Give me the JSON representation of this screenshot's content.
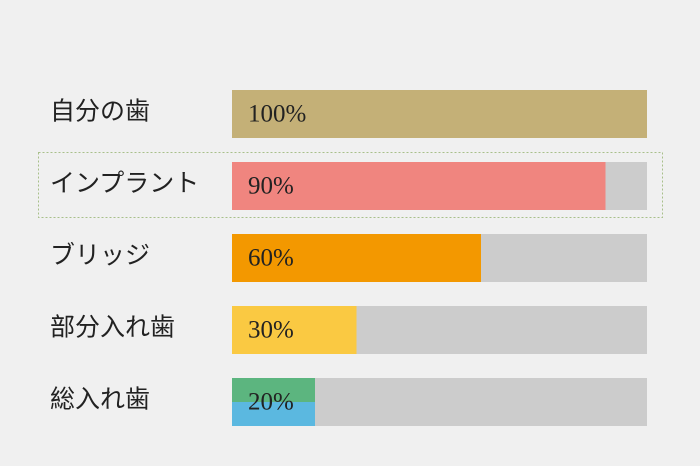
{
  "chart_data": {
    "type": "barh",
    "categories": [
      "自分の歯",
      "インプラント",
      "ブリッジ",
      "部分入れ歯",
      "総入れ歯"
    ],
    "values": [
      100,
      90,
      60,
      30,
      20
    ],
    "value_labels": [
      "100%",
      "90%",
      "60%",
      "30%",
      "20%"
    ],
    "colors": [
      "#c4b077",
      "#f0857f",
      "#f39800",
      "#fac942",
      [
        "#5cb57f",
        "#5bb8e0"
      ]
    ],
    "track_color": "#cccccc",
    "xlim": [
      0,
      100
    ],
    "highlight": 1
  }
}
